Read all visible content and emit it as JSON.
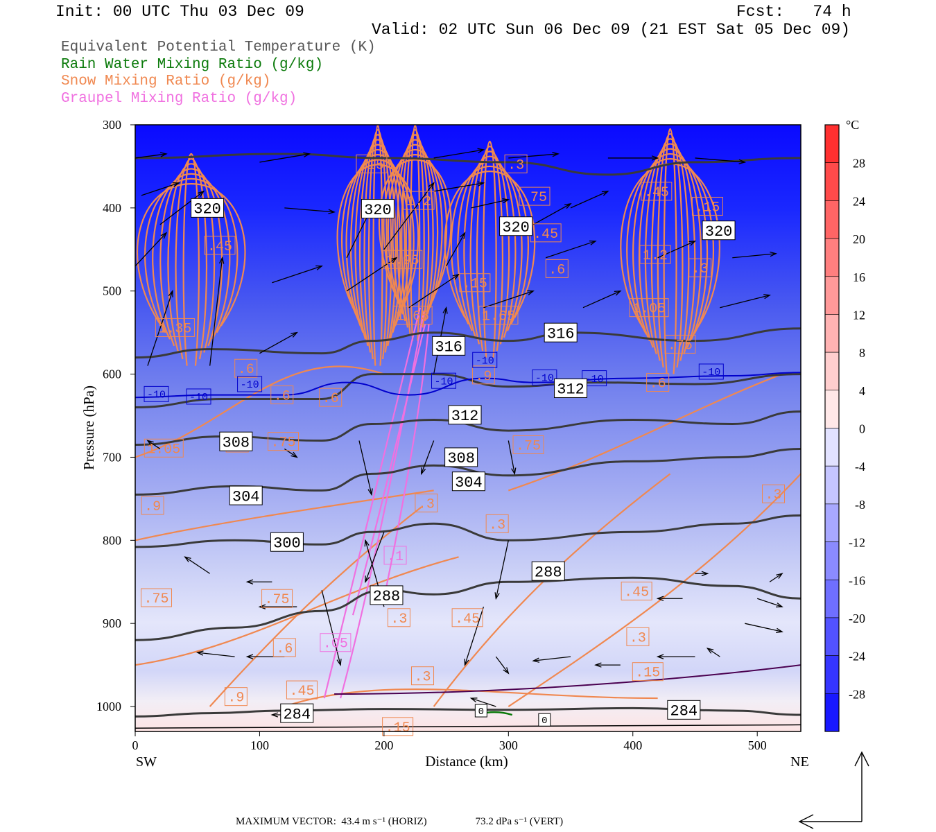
{
  "header": {
    "init": "Init: 00 UTC Thu 03 Dec 09",
    "fcst": "Fcst:   74 h",
    "valid": "Valid: 02 UTC Sun 06 Dec 09 (21 EST Sat 05 Dec 09)"
  },
  "legend": {
    "theta_e": "Equivalent Potential Temperature (K)",
    "rain": "Rain Water Mixing Ratio (g/kg)",
    "snow": "Snow Mixing Ratio (g/kg)",
    "graupel": "Graupel Mixing Ratio (g/kg)"
  },
  "footer": {
    "max_vector_horiz": "MAXIMUM VECTOR:  43.4 m s⁻¹ (HORIZ)",
    "max_vector_vert": "73.2 dPa s⁻¹ (VERT)"
  },
  "colors": {
    "theta_e": "#3a3a3a",
    "snow": "#f08850",
    "graupel": "#f070e0",
    "rain": "#0a7a0a",
    "isotherm": "#0000cc"
  },
  "chart_data": {
    "type": "cross-section",
    "xlabel": "Distance (km)",
    "ylabel": "Pressure (hPa)",
    "x_ticks": [
      0,
      100,
      200,
      300,
      400,
      500
    ],
    "xlim": [
      0,
      535
    ],
    "y_ticks": [
      300,
      400,
      500,
      600,
      700,
      800,
      900,
      1000
    ],
    "ylim": [
      1030,
      300
    ],
    "endpoint_left": "SW",
    "endpoint_right": "NE",
    "colorbar": {
      "unit": "°C",
      "ticks": [
        28,
        24,
        20,
        16,
        12,
        8,
        4,
        0,
        -4,
        -8,
        -12,
        -16,
        -20,
        -24,
        -28
      ],
      "range": [
        -32,
        32
      ]
    },
    "theta_e_lines": [
      {
        "level": 284,
        "points": [
          [
            0,
            1012
          ],
          [
            60,
            1008
          ],
          [
            120,
            1005
          ],
          [
            200,
            1003
          ],
          [
            300,
            1004
          ],
          [
            400,
            1002
          ],
          [
            480,
            1005
          ],
          [
            535,
            1010
          ]
        ]
      },
      {
        "level": 288,
        "points": [
          [
            0,
            920
          ],
          [
            80,
            905
          ],
          [
            150,
            885
          ],
          [
            200,
            860
          ],
          [
            240,
            865
          ],
          [
            300,
            850
          ],
          [
            400,
            845
          ],
          [
            480,
            855
          ],
          [
            535,
            870
          ]
        ]
      },
      {
        "level": 300,
        "points": [
          [
            0,
            808
          ],
          [
            80,
            800
          ],
          [
            150,
            805
          ],
          [
            190,
            790
          ],
          [
            240,
            780
          ],
          [
            300,
            800
          ],
          [
            400,
            790
          ],
          [
            480,
            780
          ],
          [
            535,
            770
          ]
        ]
      },
      {
        "level": 304,
        "points": [
          [
            0,
            745
          ],
          [
            80,
            735
          ],
          [
            150,
            740
          ],
          [
            190,
            720
          ],
          [
            240,
            710
          ],
          [
            300,
            722
          ],
          [
            400,
            705
          ],
          [
            480,
            700
          ],
          [
            535,
            690
          ]
        ]
      },
      {
        "level": 308,
        "points": [
          [
            0,
            685
          ],
          [
            70,
            675
          ],
          [
            150,
            680
          ],
          [
            190,
            660
          ],
          [
            240,
            655
          ],
          [
            300,
            668
          ],
          [
            400,
            655
          ],
          [
            480,
            660
          ],
          [
            535,
            645
          ]
        ]
      },
      {
        "level": 312,
        "points": [
          [
            0,
            640
          ],
          [
            70,
            630
          ],
          [
            150,
            630
          ],
          [
            190,
            600
          ],
          [
            240,
            600
          ],
          [
            300,
            615
          ],
          [
            370,
            610
          ],
          [
            450,
            612
          ],
          [
            535,
            600
          ]
        ]
      },
      {
        "level": 316,
        "points": [
          [
            0,
            580
          ],
          [
            60,
            570
          ],
          [
            150,
            575
          ],
          [
            190,
            560
          ],
          [
            240,
            550
          ],
          [
            300,
            560
          ],
          [
            350,
            550
          ],
          [
            450,
            560
          ],
          [
            535,
            545
          ]
        ]
      },
      {
        "level": 320,
        "points": [
          [
            0,
            340
          ],
          [
            120,
            335
          ],
          [
            200,
            340
          ],
          [
            300,
            345
          ],
          [
            380,
            360
          ],
          [
            450,
            345
          ],
          [
            535,
            340
          ]
        ]
      }
    ],
    "isotherm": {
      "level": -10,
      "points": [
        [
          0,
          628
        ],
        [
          60,
          625
        ],
        [
          120,
          625
        ],
        [
          170,
          610
        ],
        [
          220,
          625
        ],
        [
          280,
          605
        ],
        [
          320,
          610
        ],
        [
          400,
          605
        ],
        [
          480,
          602
        ],
        [
          535,
          598
        ]
      ]
    },
    "theta_e_labels": [
      {
        "text": "320",
        "x": 58,
        "p": 400
      },
      {
        "text": "320",
        "x": 195,
        "p": 401
      },
      {
        "text": "320",
        "x": 306,
        "p": 422
      },
      {
        "text": "320",
        "x": 469,
        "p": 427
      },
      {
        "text": "316",
        "x": 252,
        "p": 566
      },
      {
        "text": "316",
        "x": 342,
        "p": 550
      },
      {
        "text": "312",
        "x": 350,
        "p": 617
      },
      {
        "text": "312",
        "x": 265,
        "p": 649
      },
      {
        "text": "308",
        "x": 81,
        "p": 681
      },
      {
        "text": "308",
        "x": 262,
        "p": 700
      },
      {
        "text": "304",
        "x": 268,
        "p": 729
      },
      {
        "text": "304",
        "x": 89,
        "p": 746
      },
      {
        "text": "300",
        "x": 122,
        "p": 802
      },
      {
        "text": "288",
        "x": 332,
        "p": 837
      },
      {
        "text": "288",
        "x": 202,
        "p": 866
      },
      {
        "text": "284",
        "x": 130,
        "p": 1008
      },
      {
        "text": "284",
        "x": 441,
        "p": 1004
      }
    ],
    "isotherm_labels": [
      {
        "text": "-10",
        "x": 17,
        "p": 624
      },
      {
        "text": "-10",
        "x": 51,
        "p": 627
      },
      {
        "text": "-10",
        "x": 92,
        "p": 612
      },
      {
        "text": "-10",
        "x": 248,
        "p": 608
      },
      {
        "text": "-10",
        "x": 281,
        "p": 583
      },
      {
        "text": "-10",
        "x": 329,
        "p": 604
      },
      {
        "text": "-10",
        "x": 369,
        "p": 605
      },
      {
        "text": "-10",
        "x": 463,
        "p": 597
      }
    ],
    "snow_labels": [
      {
        "text": ".15",
        "x": 190,
        "p": 347
      },
      {
        "text": ".3",
        "x": 306,
        "p": 347
      },
      {
        "text": ".75",
        "x": 321,
        "p": 386
      },
      {
        "text": ".45",
        "x": 419,
        "p": 380
      },
      {
        "text": "1.2",
        "x": 228,
        "p": 391
      },
      {
        "text": ".15",
        "x": 460,
        "p": 398
      },
      {
        "text": ".45",
        "x": 68,
        "p": 445
      },
      {
        "text": ".45",
        "x": 330,
        "p": 430
      },
      {
        "text": "1.95",
        "x": 215,
        "p": 462
      },
      {
        "text": "1.2",
        "x": 418,
        "p": 456
      },
      {
        "text": ".6",
        "x": 339,
        "p": 473
      },
      {
        "text": ".3",
        "x": 454,
        "p": 472
      },
      {
        "text": ".15",
        "x": 273,
        "p": 490
      },
      {
        "text": "1.05",
        "x": 413,
        "p": 520
      },
      {
        "text": "1.65",
        "x": 223,
        "p": 529
      },
      {
        "text": "1.65",
        "x": 292,
        "p": 529
      },
      {
        "text": "1.35",
        "x": 32,
        "p": 544
      },
      {
        "text": ".75",
        "x": 438,
        "p": 564
      },
      {
        "text": ".6",
        "x": 89,
        "p": 593
      },
      {
        "text": ".6",
        "x": 118,
        "p": 625
      },
      {
        "text": ".6",
        "x": 157,
        "p": 628
      },
      {
        "text": ".9",
        "x": 280,
        "p": 601
      },
      {
        "text": ".6",
        "x": 420,
        "p": 610
      },
      {
        "text": "1.05",
        "x": 23,
        "p": 689
      },
      {
        "text": ".6",
        "x": 82,
        "p": 683
      },
      {
        "text": ".75",
        "x": 119,
        "p": 681
      },
      {
        "text": ".75",
        "x": 316,
        "p": 685
      },
      {
        "text": ".9",
        "x": 14,
        "p": 758
      },
      {
        "text": ".3",
        "x": 234,
        "p": 755
      },
      {
        "text": ".3",
        "x": 291,
        "p": 780
      },
      {
        "text": ".3",
        "x": 513,
        "p": 744
      },
      {
        "text": ".75",
        "x": 17,
        "p": 869
      },
      {
        "text": ".75",
        "x": 114,
        "p": 870
      },
      {
        "text": ".3",
        "x": 212,
        "p": 893
      },
      {
        "text": ".45",
        "x": 267,
        "p": 893
      },
      {
        "text": ".45",
        "x": 403,
        "p": 861
      },
      {
        "text": ".6",
        "x": 120,
        "p": 929
      },
      {
        "text": ".3",
        "x": 404,
        "p": 916
      },
      {
        "text": ".3",
        "x": 231,
        "p": 963
      },
      {
        "text": ".15",
        "x": 412,
        "p": 958
      },
      {
        "text": ".9",
        "x": 81,
        "p": 988
      },
      {
        "text": ".45",
        "x": 134,
        "p": 980
      },
      {
        "text": ".15",
        "x": 211,
        "p": 1024
      }
    ],
    "graupel_labels": [
      {
        "text": ".1",
        "x": 209,
        "p": 818
      },
      {
        "text": ".05",
        "x": 161,
        "p": 923
      }
    ],
    "misc_labels": [
      {
        "text": "0",
        "x": 278,
        "p": 1005
      },
      {
        "text": "0",
        "x": 329,
        "p": 1016
      }
    ]
  }
}
